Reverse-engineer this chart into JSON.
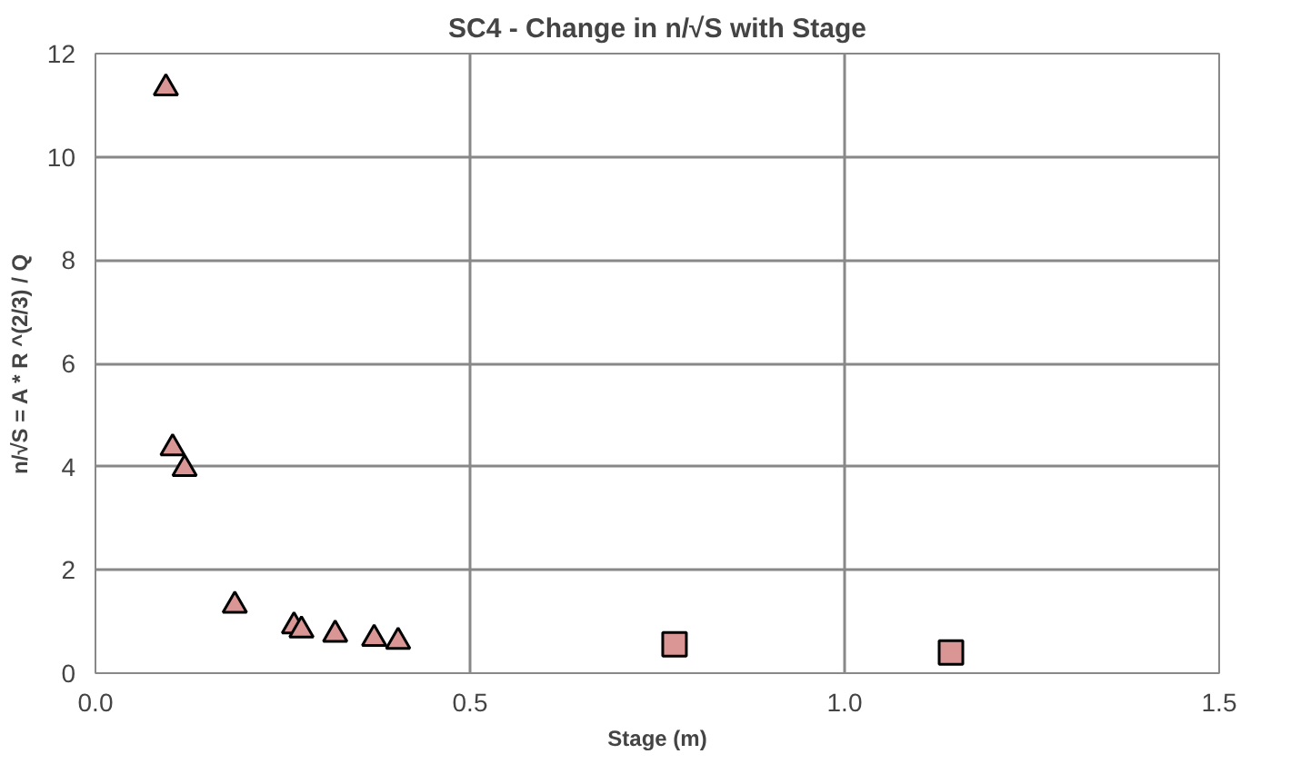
{
  "chart_data": {
    "type": "scatter",
    "title": "SC4 - Change in n/√S with Stage",
    "xlabel": "Stage (m)",
    "ylabel": "n/√S = A * R ^(2/3) / Q",
    "xlim": [
      0,
      1.5
    ],
    "xticks": [
      {
        "value": 0,
        "label": "0.0"
      },
      {
        "value": 0.5,
        "label": "0.5"
      },
      {
        "value": 1,
        "label": "1.0"
      },
      {
        "value": 1.5,
        "label": "1.5"
      }
    ],
    "ylim": [
      0,
      12
    ],
    "yticks": [
      0,
      2,
      4,
      6,
      8,
      10,
      12
    ],
    "grid": true,
    "series": [
      {
        "color": "#d99694",
        "marker": "triangle",
        "x": [
          0.094,
          0.103,
          0.119,
          0.186,
          0.265,
          0.275,
          0.32,
          0.372,
          0.404
        ],
        "values": [
          11.33,
          4.36,
          3.96,
          1.31,
          0.91,
          0.83,
          0.75,
          0.67,
          0.61
        ]
      },
      {
        "color": "#d99694",
        "marker": "square",
        "x": [
          0.773,
          1.142
        ],
        "values": [
          0.56,
          0.4
        ]
      }
    ]
  }
}
